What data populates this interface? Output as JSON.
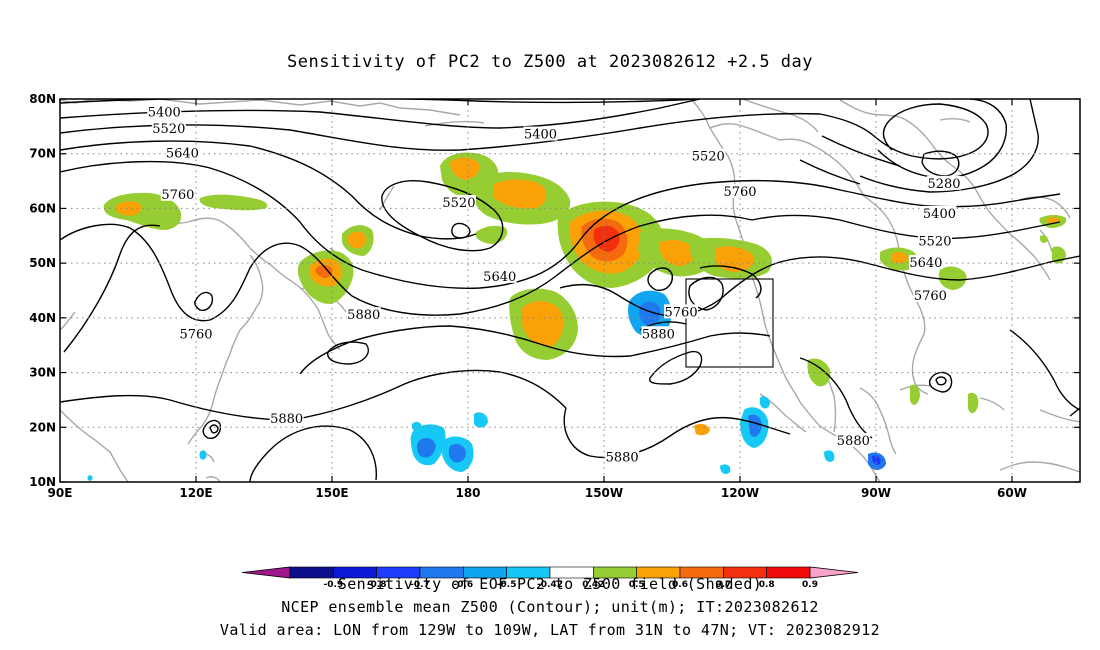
{
  "title": "Sensitivity of PC2 to Z500 at 2023082612 +2.5 day",
  "map": {
    "lat_ticks": [
      "80N",
      "70N",
      "60N",
      "50N",
      "40N",
      "30N",
      "20N",
      "10N"
    ],
    "lon_ticks": [
      "90E",
      "120E",
      "150E",
      "180",
      "150W",
      "120W",
      "90W",
      "60W"
    ],
    "valid_box": {
      "lon": [
        "129W",
        "109W"
      ],
      "lat": [
        "31N",
        "47N"
      ]
    }
  },
  "contour_labels": [
    {
      "text": "5400",
      "lon": 113,
      "lat": 77.5
    },
    {
      "text": "5520",
      "lon": 114,
      "lat": 74.5
    },
    {
      "text": "5640",
      "lon": 117,
      "lat": 70.0
    },
    {
      "text": "5760",
      "lon": 116,
      "lat": 62.5
    },
    {
      "text": "5400",
      "lon": 196,
      "lat": 73.5
    },
    {
      "text": "5520",
      "lon": 233,
      "lat": 69.5
    },
    {
      "text": "5760",
      "lon": 240,
      "lat": 63.0
    },
    {
      "text": "5520",
      "lon": 178,
      "lat": 61.0
    },
    {
      "text": "5640",
      "lon": 187,
      "lat": 47.5
    },
    {
      "text": "5880",
      "lon": 157,
      "lat": 40.5
    },
    {
      "text": "5760",
      "lon": 120,
      "lat": 37.0
    },
    {
      "text": "5760",
      "lon": 227,
      "lat": 41.0
    },
    {
      "text": "5880",
      "lon": 222,
      "lat": 37.0
    },
    {
      "text": "5280",
      "lon": 285,
      "lat": 64.5
    },
    {
      "text": "5400",
      "lon": 284,
      "lat": 59.0
    },
    {
      "text": "5520",
      "lon": 283,
      "lat": 54.0
    },
    {
      "text": "5640",
      "lon": 281,
      "lat": 50.0
    },
    {
      "text": "5760",
      "lon": 282,
      "lat": 44.0
    },
    {
      "text": "5880",
      "lon": 140,
      "lat": 21.5
    },
    {
      "text": "5880",
      "lon": 214,
      "lat": 14.5
    },
    {
      "text": "5880",
      "lon": 265,
      "lat": 17.5
    }
  ],
  "colorbar": {
    "labels": [
      "-0.9",
      "-0.8",
      "-0.7",
      "-0.6",
      "-0.5",
      "-0.42",
      "0.42",
      "0.5",
      "0.6",
      "0.7",
      "0.8",
      "0.9"
    ],
    "colors": [
      "#0c0e8c",
      "#0c1ad8",
      "#1d3dfa",
      "#1f78ee",
      "#11a4f0",
      "#15c8f5",
      "#ffffff",
      "#96cd32",
      "#f9a106",
      "#f46a0e",
      "#f2300d",
      "#f10a0a"
    ],
    "under_color": "#a0168c",
    "over_color": "#f8a4c8"
  },
  "footer": {
    "line1": "Sensitivity of EOF PC2 to Z500 field (Shaded)",
    "line2": "NCEP ensemble mean Z500 (Contour); unit(m); IT:2023082612",
    "line3": "Valid area: LON from 129W to 109W, LAT from 31N to 47N; VT: 2023082912"
  }
}
